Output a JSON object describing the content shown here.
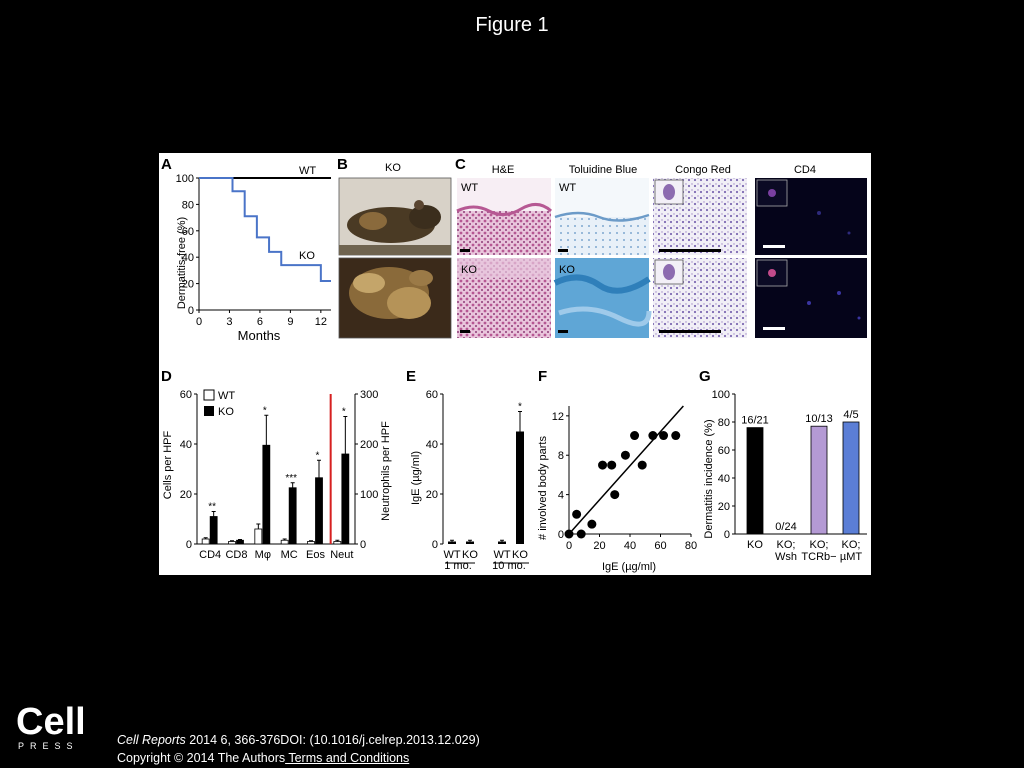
{
  "slide": {
    "title": "Figure 1"
  },
  "footer": {
    "journal": "Cell Reports",
    "citation_rest": " 2014 6, 366-376DOI: (10.1016/j.celrep.2013.12.029)",
    "copyright": "Copyright © 2014 The Authors",
    "terms_link": " Terms and Conditions",
    "logo_main": "Cell",
    "logo_sub": "PRESS"
  },
  "panels": {
    "A": {
      "label": "A",
      "line_wt": "WT",
      "line_ko": "KO",
      "ylabel": "Dermatitis-free (%)",
      "xlabel": "Months"
    },
    "B": {
      "label": "B",
      "title": "KO"
    },
    "C": {
      "label": "C",
      "columns": [
        "H&E",
        "Toluidine Blue",
        "Congo Red",
        "CD4"
      ],
      "row_labels": [
        "WT",
        "KO"
      ]
    },
    "D": {
      "label": "D",
      "ylabel_left": "Cells per HPF",
      "ylabel_right": "Neutrophils per HPF",
      "legend": [
        "WT",
        "KO"
      ]
    },
    "E": {
      "label": "E",
      "ylabel": "IgE (µg/ml)",
      "group_labels": [
        "1 mo.",
        "10 mo."
      ]
    },
    "F": {
      "label": "F",
      "ylabel": "# involved body parts",
      "xlabel": "IgE (µg/ml)"
    },
    "G": {
      "label": "G",
      "ylabel": "Dermatitis incidence (%)"
    }
  },
  "chart_data": [
    {
      "panel": "A",
      "type": "line",
      "xlabel": "Months",
      "ylabel": "Dermatitis-free (%)",
      "xlim": [
        0,
        13
      ],
      "ylim": [
        0,
        100
      ],
      "xticks": [
        "0",
        "3",
        "6",
        "9",
        "12"
      ],
      "yticks": [
        "0",
        "20",
        "40",
        "60",
        "80",
        "100"
      ],
      "series": [
        {
          "name": "WT",
          "color": "#000000",
          "x": [
            0,
            13
          ],
          "y": [
            100,
            100
          ]
        },
        {
          "name": "KO",
          "color": "#4a74c8",
          "step": true,
          "x": [
            0,
            3.3,
            3.3,
            4.5,
            4.5,
            5.7,
            5.7,
            6.9,
            6.9,
            8.1,
            8.1,
            12,
            12,
            13
          ],
          "y": [
            100,
            100,
            90,
            90,
            71,
            71,
            55,
            55,
            44,
            44,
            34,
            34,
            22,
            22
          ]
        }
      ]
    },
    {
      "panel": "D",
      "type": "bar",
      "categories": [
        "CD4",
        "CD8",
        "Mφ",
        "MC",
        "Eos",
        "Neut"
      ],
      "ylabel": "Cells per HPF",
      "ylim": [
        0,
        60
      ],
      "yticks": [
        "0",
        "20",
        "40",
        "60"
      ],
      "y2label": "Neutrophils per HPF",
      "y2lim": [
        0,
        300
      ],
      "y2ticks": [
        "0",
        "100",
        "200",
        "300"
      ],
      "series": [
        {
          "name": "WT",
          "color": "#ffffff",
          "values": [
            2,
            1,
            6,
            1.5,
            1,
            1
          ],
          "errors": [
            0.5,
            0.3,
            2,
            0.5,
            0.3,
            0.5
          ]
        },
        {
          "name": "KO",
          "color": "#000000",
          "values": [
            11,
            1.5,
            39.5,
            22.5,
            26.5,
            36
          ],
          "errors": [
            2,
            0.3,
            12,
            2,
            7,
            15
          ]
        }
      ],
      "annotations": [
        "**",
        "",
        "*",
        "***",
        "*",
        "*"
      ],
      "neut_axis_note": "Neut plotted on right axis (0-300)"
    },
    {
      "panel": "E",
      "type": "bar",
      "categories": [
        "WT",
        "KO",
        "WT",
        "KO"
      ],
      "groups": [
        "1 mo.",
        "10 mo."
      ],
      "ylabel": "IgE (µg/ml)",
      "ylim": [
        0,
        60
      ],
      "yticks": [
        "0",
        "20",
        "40",
        "60"
      ],
      "values": [
        1,
        1,
        1,
        45
      ],
      "errors": [
        0.5,
        0.5,
        0.5,
        8
      ],
      "annotations": [
        "",
        "",
        "",
        "*"
      ]
    },
    {
      "panel": "F",
      "type": "scatter",
      "xlabel": "IgE (µg/ml)",
      "ylabel": "# involved body parts",
      "xlim": [
        0,
        80
      ],
      "ylim": [
        0,
        13
      ],
      "xticks": [
        "0",
        "20",
        "40",
        "60",
        "80"
      ],
      "yticks": [
        "0",
        "4",
        "8",
        "12"
      ],
      "x": [
        0,
        5,
        8,
        15,
        22,
        28,
        30,
        37,
        43,
        48,
        55,
        62,
        70
      ],
      "y": [
        0,
        2,
        0,
        1,
        7,
        7,
        4,
        8,
        10,
        7,
        10,
        10,
        10
      ],
      "fit": {
        "x": [
          0,
          75
        ],
        "y": [
          0,
          13
        ]
      }
    },
    {
      "panel": "G",
      "type": "bar",
      "categories": [
        "KO",
        "KO; Wsh",
        "KO; TCRb−",
        "KO; µMT"
      ],
      "ylabel": "Dermatitis incidence (%)",
      "ylim": [
        0,
        100
      ],
      "yticks": [
        "0",
        "20",
        "40",
        "60",
        "80",
        "100"
      ],
      "values": [
        76,
        0,
        77,
        80
      ],
      "colors": [
        "#000000",
        "#000000",
        "#b49ad4",
        "#5b7ed6"
      ],
      "bar_labels": [
        "16/21",
        "0/24",
        "10/13",
        "4/5"
      ]
    }
  ]
}
